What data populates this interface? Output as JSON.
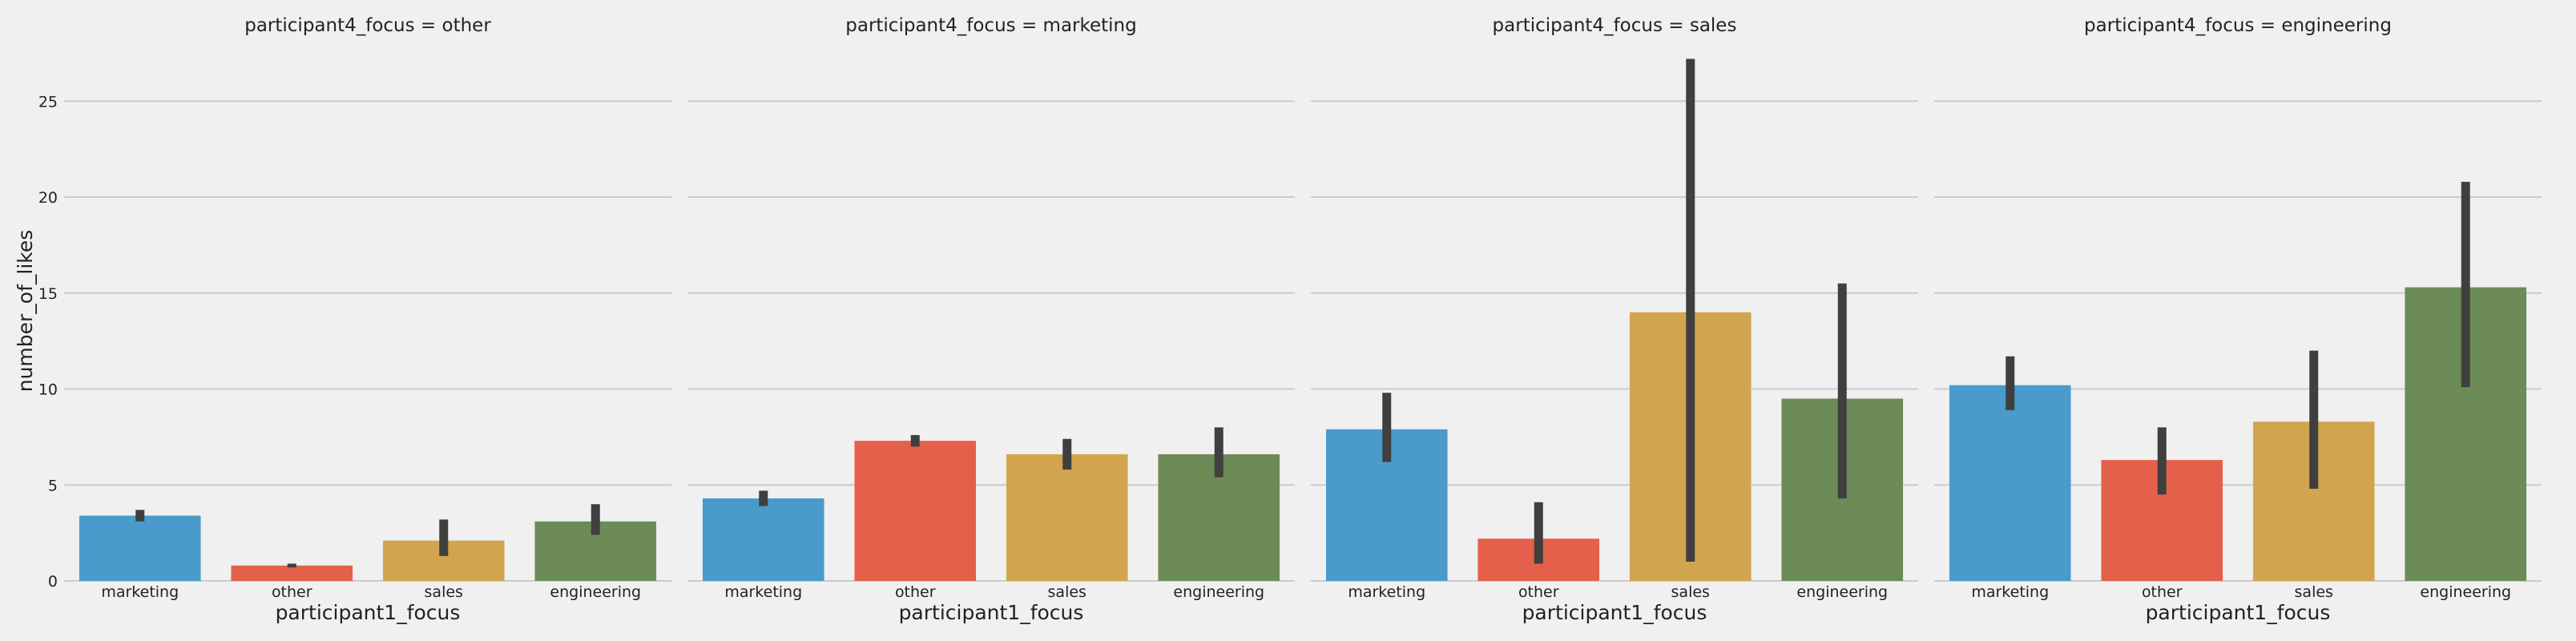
{
  "chart_data": {
    "type": "bar",
    "facet_variable": "participant4_focus",
    "xlabel": "participant1_focus",
    "ylabel": "number_of_likes",
    "categories": [
      "marketing",
      "other",
      "sales",
      "engineering"
    ],
    "colors": [
      "#4a9bcb",
      "#e5604a",
      "#d1a54d",
      "#6d8b57"
    ],
    "errorbar_color": "#3f3f3f",
    "ylim": [
      0,
      28
    ],
    "yticks": [
      0,
      5,
      10,
      15,
      20,
      25
    ],
    "grid": "horizontal",
    "panels": [
      {
        "title": "participant4_focus = other",
        "values": [
          3.4,
          0.8,
          2.1,
          3.1
        ],
        "ci": [
          [
            3.1,
            3.7
          ],
          [
            0.7,
            0.9
          ],
          [
            1.3,
            3.2
          ],
          [
            2.4,
            4.0
          ]
        ]
      },
      {
        "title": "participant4_focus = marketing",
        "values": [
          4.3,
          7.3,
          6.6,
          6.6
        ],
        "ci": [
          [
            3.9,
            4.7
          ],
          [
            7.0,
            7.6
          ],
          [
            5.8,
            7.4
          ],
          [
            5.4,
            8.0
          ]
        ]
      },
      {
        "title": "participant4_focus = sales",
        "values": [
          7.9,
          2.2,
          14.0,
          9.5
        ],
        "ci": [
          [
            6.2,
            9.8
          ],
          [
            0.9,
            4.1
          ],
          [
            1.0,
            27.2
          ],
          [
            4.3,
            15.5
          ]
        ]
      },
      {
        "title": "participant4_focus = engineering",
        "values": [
          10.2,
          6.3,
          8.3,
          15.3
        ],
        "ci": [
          [
            8.9,
            11.7
          ],
          [
            4.5,
            8.0
          ],
          [
            4.8,
            12.0
          ],
          [
            10.1,
            20.8
          ]
        ]
      }
    ]
  }
}
